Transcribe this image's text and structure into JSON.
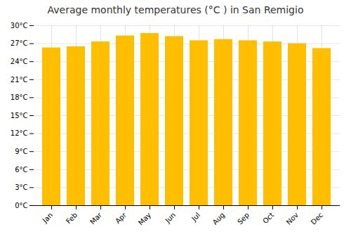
{
  "chart_data": {
    "type": "bar",
    "title": "Average monthly temperatures (°C ) in San Remigio",
    "categories": [
      "Jan",
      "Feb",
      "Mar",
      "Apr",
      "May",
      "Jun",
      "Jul",
      "Aug",
      "Sep",
      "Oct",
      "Nov",
      "Dec"
    ],
    "values": [
      26.3,
      26.5,
      27.3,
      28.3,
      28.7,
      28.2,
      27.5,
      27.7,
      27.5,
      27.3,
      27.0,
      26.2
    ],
    "color": "#FFBE00",
    "ylim": [
      0,
      30
    ],
    "yticks": [
      {
        "value": 0,
        "label": "0°C"
      },
      {
        "value": 3,
        "label": "3°C"
      },
      {
        "value": 6,
        "label": "6°C"
      },
      {
        "value": 9,
        "label": "9°C"
      },
      {
        "value": 12,
        "label": "12°C"
      },
      {
        "value": 15,
        "label": "15°C"
      },
      {
        "value": 18,
        "label": "18°C"
      },
      {
        "value": 21,
        "label": "21°C"
      },
      {
        "value": 24,
        "label": "24°C"
      },
      {
        "value": 27,
        "label": "27°C"
      },
      {
        "value": 30,
        "label": "30°C"
      }
    ],
    "grid": true
  }
}
